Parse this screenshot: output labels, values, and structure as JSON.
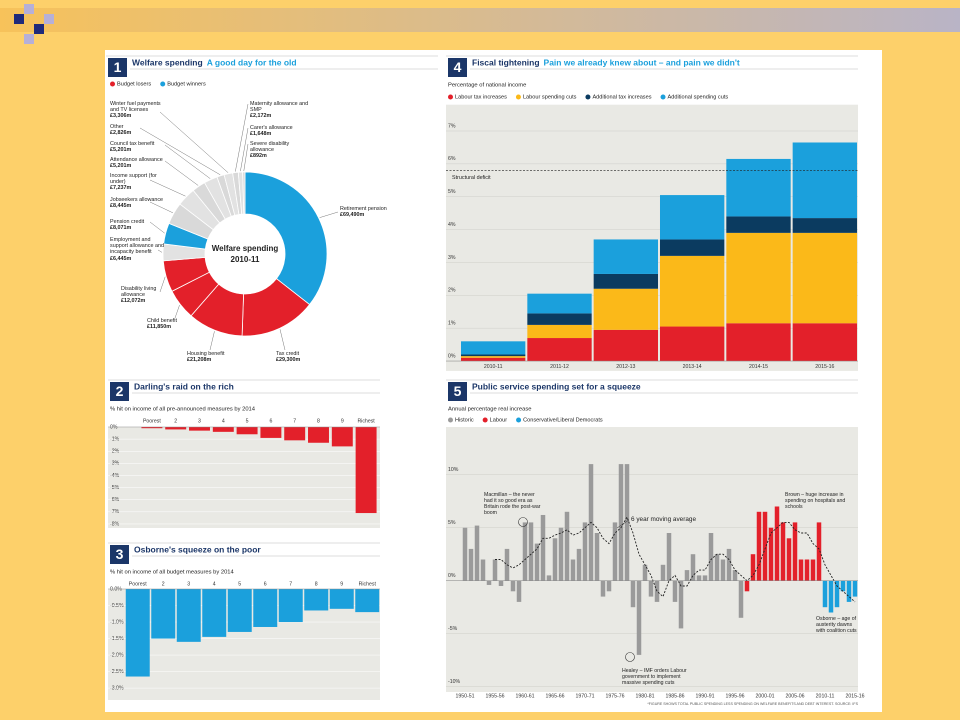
{
  "chart_data": [
    {
      "type": "pie",
      "number": "1",
      "title": "Welfare spending",
      "subtitle": "A good day for the old",
      "legend": [
        {
          "name": "Budget losers",
          "color": "#e3202a"
        },
        {
          "name": "Budget winners",
          "color": "#1ba0dc"
        }
      ],
      "center_title": "Welfare spending",
      "center_subtitle": "2010-11",
      "categories": [
        "Retirement pension",
        "Tax credit",
        "Housing benefit",
        "Child benefit",
        "Disability living allowance",
        "Employment and support allowance and incapacity benefit",
        "Pension credit",
        "Jobseekers allowance",
        "Income support (for under)",
        "Attendance allowance",
        "Council tax benefit",
        "Other",
        "Winter fuel payments and TV licenses",
        "Maternity allowance and SMP",
        "Carer's allowance",
        "Severe disability allowance"
      ],
      "values": [
        69490,
        29300,
        21208,
        11850,
        12072,
        6445,
        8071,
        8445,
        7237,
        5201,
        5201,
        2826,
        3306,
        2172,
        1648,
        892
      ],
      "value_labels": [
        "£69,490m",
        "£29,300m",
        "£21,208m",
        "£11,850m",
        "£12,072m",
        "£6,445m",
        "£8,071m",
        "£8,445m",
        "£7,237m",
        "£5,201m",
        "£5,201m",
        "£2,826m",
        "£3,306m",
        "£2,172m",
        "£1,648m",
        "£892m"
      ],
      "colors": [
        "#1ba0dc",
        "#e3202a",
        "#e3202a",
        "#e3202a",
        "#e3202a",
        "#e2e2e2",
        "#1ba0dc",
        "#d9d9d9",
        "#e2e2e2",
        "#d9d9d9",
        "#e2e2e2",
        "#d9d9d9",
        "#e2e2e2",
        "#d9d9d9",
        "#e2e2e2",
        "#d9d9d9"
      ]
    },
    {
      "type": "bar",
      "number": "2",
      "title": "Darling's raid on the rich",
      "ylabel": "% hit on income of all pre-announced measures by 2014",
      "categories": [
        "Poorest",
        "2",
        "3",
        "4",
        "5",
        "6",
        "7",
        "8",
        "9",
        "Richest"
      ],
      "values": [
        -0.1,
        -0.2,
        -0.3,
        -0.4,
        -0.6,
        -0.9,
        -1.1,
        -1.3,
        -1.6,
        -7.1
      ],
      "color": "#e3202a",
      "ylim": [
        -8.3,
        0
      ],
      "yticks": [
        {
          "value": 0,
          "label": "0%"
        },
        {
          "value": -1,
          "label": "-1%"
        },
        {
          "value": -2,
          "label": "-2%"
        },
        {
          "value": -3,
          "label": "-3%"
        },
        {
          "value": -4,
          "label": "-4%"
        },
        {
          "value": -5,
          "label": "-5%"
        },
        {
          "value": -6,
          "label": "-6%"
        },
        {
          "value": -7,
          "label": "-7%"
        },
        {
          "value": -8,
          "label": "-8%"
        }
      ]
    },
    {
      "type": "bar",
      "number": "3",
      "title": "Osborne's squeeze on the poor",
      "ylabel": "% hit on income of all budget measures by 2014",
      "categories": [
        "Poorest",
        "2",
        "3",
        "4",
        "5",
        "6",
        "7",
        "8",
        "9",
        "Richest"
      ],
      "values": [
        -2.65,
        -1.5,
        -1.6,
        -1.45,
        -1.3,
        -1.15,
        -1.0,
        -0.65,
        -0.6,
        -0.7
      ],
      "color": "#1ba0dc",
      "ylim": [
        -3.3,
        0
      ],
      "yticks": [
        {
          "value": 0,
          "label": "0.0%"
        },
        {
          "value": -0.5,
          "label": "-0.5%"
        },
        {
          "value": -1,
          "label": "-1.0%"
        },
        {
          "value": -1.5,
          "label": "-1.5%"
        },
        {
          "value": -2,
          "label": "-2.0%"
        },
        {
          "value": -2.5,
          "label": "-2.5%"
        },
        {
          "value": -3,
          "label": "-3.0%"
        }
      ]
    },
    {
      "type": "bar",
      "stacked": true,
      "number": "4",
      "title": "Fiscal tightening",
      "subtitle": "Pain we already knew about – and pain we didn't",
      "ylabel": "Percentage of national income",
      "categories": [
        "2010-11",
        "2011-12",
        "2012-13",
        "2013-14",
        "2014-15",
        "2015-16"
      ],
      "series": [
        {
          "name": "Labour tax increases",
          "color": "#e3202a",
          "values": [
            0.1,
            0.7,
            0.95,
            1.05,
            1.15,
            1.15
          ]
        },
        {
          "name": "Labour spending cuts",
          "color": "#fbb919",
          "values": [
            0.05,
            0.4,
            1.25,
            2.15,
            2.75,
            2.75
          ]
        },
        {
          "name": "Additional tax increases",
          "color": "#0b3b60",
          "values": [
            0.05,
            0.35,
            0.45,
            0.5,
            0.5,
            0.45
          ]
        },
        {
          "name": "Additional spending cuts",
          "color": "#1ba0dc",
          "values": [
            0.4,
            0.6,
            1.05,
            1.35,
            1.75,
            2.3
          ]
        }
      ],
      "reference_line": {
        "value": 5.8,
        "label": "Structural deficit"
      },
      "ylim": [
        -0.3,
        7.8
      ],
      "grid": true,
      "yticks": [
        {
          "value": 0,
          "label": "0%"
        },
        {
          "value": 1,
          "label": "1%"
        },
        {
          "value": 2,
          "label": "2%"
        },
        {
          "value": 3,
          "label": "3%"
        },
        {
          "value": 4,
          "label": "4%"
        },
        {
          "value": 5,
          "label": "5%"
        },
        {
          "value": 6,
          "label": "6%"
        },
        {
          "value": 7,
          "label": "7%"
        }
      ]
    },
    {
      "type": "bar",
      "number": "5",
      "title": "Public service spending set for a squeeze",
      "ylabel": "Annual percentage real increase",
      "categories": [
        "1950-51",
        null,
        null,
        null,
        null,
        "1955-56",
        null,
        null,
        null,
        null,
        "1960-61",
        null,
        null,
        null,
        null,
        "1965-66",
        null,
        null,
        null,
        null,
        "1970-71",
        null,
        null,
        null,
        null,
        "1975-76",
        null,
        null,
        null,
        null,
        "1980-81",
        null,
        null,
        null,
        null,
        "1985-86",
        null,
        null,
        null,
        null,
        "1990-91",
        null,
        null,
        null,
        null,
        "1995-96",
        null,
        null,
        null,
        null,
        "2000-01",
        null,
        null,
        null,
        null,
        "2005-06",
        null,
        null,
        null,
        null,
        "2010-11",
        null,
        null,
        null,
        null,
        "2015-16"
      ],
      "series": [
        {
          "name": "Historic",
          "color": "#9a9a9a",
          "values": [
            5.0,
            3.0,
            5.2,
            2.0,
            -0.4,
            2.0,
            -0.5,
            3.0,
            -1.0,
            -2.0,
            5.5,
            5.5,
            3.5,
            6.2,
            0.5,
            4.0,
            5.0,
            6.5,
            2.0,
            3.0,
            5.5,
            11.0,
            4.5,
            -1.5,
            -1.0,
            5.5,
            11.0,
            11.0,
            -2.5,
            -7.0,
            1.5,
            -1.5,
            -2.0,
            1.5,
            4.5,
            -2.0,
            -4.5,
            1.0,
            2.5,
            0.5,
            0.5,
            4.5,
            2.5,
            2.0,
            3.0,
            1.0,
            -3.5,
            null,
            null,
            null,
            null,
            null,
            null,
            null,
            null,
            null,
            null,
            null,
            null,
            null,
            null,
            null,
            null,
            null,
            null,
            null
          ]
        },
        {
          "name": "Labour",
          "color": "#e3202a",
          "values": [
            null,
            null,
            null,
            null,
            null,
            null,
            null,
            null,
            null,
            null,
            null,
            null,
            null,
            null,
            null,
            null,
            null,
            null,
            null,
            null,
            null,
            null,
            null,
            null,
            null,
            null,
            null,
            null,
            null,
            null,
            null,
            null,
            null,
            null,
            null,
            null,
            null,
            null,
            null,
            null,
            null,
            null,
            null,
            null,
            null,
            null,
            null,
            -1.0,
            2.5,
            6.5,
            6.5,
            5.0,
            7.0,
            5.5,
            4.0,
            5.5,
            2.0,
            2.0,
            2.0,
            5.5,
            null,
            null,
            null,
            null,
            null,
            null
          ]
        },
        {
          "name": "Conservative/Liberal Democrats",
          "color": "#1ba0dc",
          "values": [
            null,
            null,
            null,
            null,
            null,
            null,
            null,
            null,
            null,
            null,
            null,
            null,
            null,
            null,
            null,
            null,
            null,
            null,
            null,
            null,
            null,
            null,
            null,
            null,
            null,
            null,
            null,
            null,
            null,
            null,
            null,
            null,
            null,
            null,
            null,
            null,
            null,
            null,
            null,
            null,
            null,
            null,
            null,
            null,
            null,
            null,
            null,
            null,
            null,
            null,
            null,
            null,
            null,
            null,
            null,
            null,
            null,
            null,
            null,
            null,
            -2.5,
            -3.0,
            -2.5,
            -1.0,
            -2.0,
            -1.5
          ]
        },
        {
          "type": "line",
          "color": "#222222",
          "values": [
            null,
            null,
            null,
            null,
            null,
            2.0,
            2.0,
            1.5,
            1.2,
            1.5,
            2.0,
            2.5,
            3.0,
            4.0,
            4.0,
            4.3,
            4.5,
            4.8,
            4.3,
            4.5,
            5.0,
            5.5,
            5.0,
            4.0,
            3.5,
            4.5,
            5.0,
            6.0,
            4.5,
            2.5,
            1.5,
            0.5,
            -1.0,
            -1.5,
            0.0,
            0.5,
            -0.5,
            -0.5,
            0.5,
            1.0,
            1.0,
            2.0,
            2.5,
            2.5,
            2.0,
            1.0,
            0.5,
            0.0,
            0.5,
            1.5,
            3.0,
            4.5,
            5.0,
            5.5,
            5.5,
            4.8,
            4.5,
            4.5,
            3.5,
            3.0,
            1.5,
            0.5,
            -0.5,
            -1.0,
            -1.5,
            -2.0
          ]
        }
      ],
      "annotations": [
        "Macmillan – the never had it so good era as Britain rode the post-war boom",
        "6 year moving average",
        "Brown – huge increase in spending on hospitals and schools",
        "Healey – IMF orders Labour government to implement massive spending cuts",
        "Osborne – age of austerity dawns with coalition cuts"
      ],
      "footnote": "*FIGURE SHOWS TOTAL PUBLIC SPENDING LESS SPENDING ON WELFARE BENEFITS AND DEBT INTEREST. SOURCE: IFS",
      "ylim": [
        -10.5,
        14.5
      ],
      "grid": true,
      "yticks": [
        {
          "value": -10,
          "label": "-10%"
        },
        {
          "value": -5,
          "label": "-5%"
        },
        {
          "value": 0,
          "label": "0%"
        },
        {
          "value": 5,
          "label": "5%"
        },
        {
          "value": 10,
          "label": "10%"
        }
      ]
    }
  ]
}
